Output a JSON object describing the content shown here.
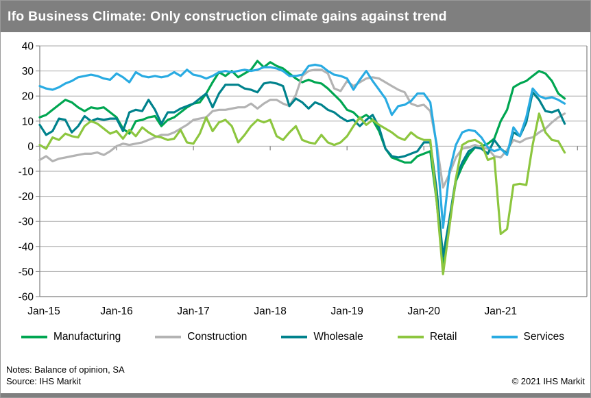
{
  "title": "Ifo Business Climate: Only construction climate gains against trend",
  "notes": {
    "line1": "Notes: Balance of opinion, SA",
    "line2": "Source: IHS Markit",
    "copyright": "© 2021 IHS Markit"
  },
  "colors": {
    "title_bar": "#7f7f7f",
    "grid": "#a6a6a6",
    "axis": "#7f7f7f",
    "manufacturing": "#00A651",
    "construction": "#B3B3B3",
    "wholesale": "#00828C",
    "retail": "#8DC63F",
    "services": "#29ABE2"
  },
  "chart_data": {
    "type": "line",
    "title": "Ifo Business Climate: Only construction climate gains against trend",
    "xlabel": "",
    "ylabel": "Balance of opinion, SA",
    "ylim": [
      -60,
      40
    ],
    "grid": "horizontal",
    "legend_position": "bottom",
    "x_start_month": "Jan-15",
    "x_end_month": "Nov-21",
    "x_tick_labels": [
      "Jan-15",
      "Jan-16",
      "Jan-17",
      "Jan-18",
      "Jan-19",
      "Jan-20",
      "Jan-21"
    ],
    "y_ticks": [
      40,
      30,
      20,
      10,
      0,
      -10,
      -20,
      -30,
      -40,
      -50,
      -60
    ],
    "series": [
      {
        "name": "Manufacturing",
        "color": "#00A651",
        "values": [
          11.5,
          12.5,
          14.5,
          16.5,
          18.5,
          17.5,
          15.5,
          14,
          15.5,
          15,
          15.5,
          13.5,
          11.5,
          7,
          5,
          10,
          10.5,
          11.5,
          12,
          8,
          10.5,
          11.5,
          13.5,
          15.5,
          17,
          17.5,
          21,
          25.5,
          29.5,
          28,
          30,
          27.5,
          29,
          30.5,
          34,
          31.5,
          33.5,
          32,
          31,
          29,
          27,
          25.5,
          26.5,
          25.5,
          25,
          23,
          20.5,
          18,
          14.5,
          13.5,
          11,
          12.5,
          10.5,
          6,
          -1,
          -4.5,
          -5.5,
          -6.5,
          -6.5,
          -4,
          -3,
          -2,
          -22,
          -48.5,
          -30,
          -14,
          -8,
          -3.5,
          -0.5,
          0,
          1,
          3,
          10,
          14.5,
          23.5,
          25,
          26,
          28,
          30,
          29,
          26,
          21,
          19
        ]
      },
      {
        "name": "Construction",
        "color": "#B3B3B3",
        "values": [
          -5.5,
          -4,
          -6,
          -5,
          -4.5,
          -4,
          -3.5,
          -3,
          -3,
          -2.5,
          -3.5,
          -2,
          0,
          1,
          0.5,
          1,
          1.5,
          2.5,
          3.5,
          4.5,
          4.5,
          5.5,
          7,
          8.5,
          10.5,
          11,
          11.5,
          14,
          14.5,
          14.5,
          15,
          15.5,
          15.5,
          17,
          15,
          17,
          18.5,
          18.5,
          17,
          16,
          20.5,
          28,
          30,
          30.5,
          30.5,
          29,
          23,
          22,
          26,
          24,
          25.5,
          27,
          27.5,
          27,
          25.5,
          24,
          22.5,
          21.5,
          17,
          16,
          16.5,
          14,
          1,
          -16.5,
          -11,
          -4.5,
          -1,
          -0.5,
          0.5,
          -0.5,
          -1,
          -4,
          -4.5,
          -1.5,
          2.5,
          1.5,
          3,
          3.5,
          5.5,
          7,
          9.5,
          11.5,
          13
        ]
      },
      {
        "name": "Wholesale",
        "color": "#00828C",
        "values": [
          8.5,
          4.5,
          6,
          11,
          10.5,
          5.5,
          8,
          12,
          10,
          11,
          10.5,
          11,
          11,
          6,
          13.5,
          14.5,
          14,
          18.5,
          14.5,
          9,
          13.5,
          13.5,
          15,
          16,
          17,
          19,
          21,
          15.5,
          21,
          24.5,
          24.5,
          24.5,
          23,
          22.5,
          21.5,
          25,
          25.5,
          25,
          24,
          16,
          19,
          17.5,
          15,
          17.5,
          16.5,
          14.5,
          13.5,
          11.5,
          10,
          10.5,
          8,
          10.5,
          12.5,
          7.5,
          -1,
          -4,
          -4.5,
          -4,
          -3,
          -2,
          1.5,
          1.5,
          -17.5,
          -44,
          -29,
          -13,
          -6.5,
          -2,
          -0.5,
          -1,
          -3,
          2.5,
          -1,
          -3,
          5.5,
          4,
          9.5,
          21.5,
          18.5,
          14,
          13.5,
          14.5,
          9
        ]
      },
      {
        "name": "Retail",
        "color": "#8DC63F",
        "values": [
          0.5,
          -1,
          3.5,
          2.5,
          5,
          4,
          3.5,
          8,
          10,
          9,
          7,
          5,
          6,
          3,
          6.5,
          4,
          7.5,
          5.5,
          4,
          3.5,
          2.5,
          3,
          6.5,
          1.5,
          1,
          5,
          11.5,
          6,
          9.5,
          10.5,
          8,
          1.5,
          4.5,
          8,
          10.5,
          9.5,
          10.5,
          4,
          2.5,
          5.5,
          8,
          2.5,
          1.5,
          1,
          4.5,
          1.5,
          0.5,
          1.5,
          4,
          8,
          11.5,
          8.5,
          10.5,
          8.5,
          7,
          5.5,
          3.5,
          2.5,
          5.5,
          3.5,
          2.5,
          2.5,
          -22,
          -51,
          -32,
          -13,
          0.5,
          2,
          2.5,
          1,
          -5.5,
          -4.5,
          -35,
          -33,
          -15.5,
          -15,
          -15.5,
          0.5,
          13,
          5.5,
          2.5,
          2,
          -2.5
        ]
      },
      {
        "name": "Services",
        "color": "#29ABE2",
        "values": [
          24,
          23,
          22.5,
          23.5,
          25,
          26,
          27.5,
          28,
          28.5,
          28,
          27,
          26.5,
          29,
          27.5,
          25.5,
          29.5,
          28,
          27.5,
          28,
          27.5,
          28,
          29.5,
          28,
          30.5,
          28.5,
          28,
          27,
          28,
          29.5,
          30,
          29.5,
          30,
          30.5,
          30,
          30.5,
          31.5,
          31.5,
          31,
          30,
          28,
          28,
          28.5,
          32,
          32.5,
          32,
          30,
          28.5,
          28,
          27,
          22.5,
          26.5,
          30,
          26,
          22.5,
          19,
          12.5,
          16,
          16.5,
          18,
          21,
          21,
          17.5,
          0,
          -32.5,
          -10,
          0.5,
          5.5,
          6.5,
          6,
          3.5,
          -0.5,
          -2,
          -1,
          -3.5,
          7.5,
          4,
          11.5,
          23,
          20,
          19,
          19.5,
          18.5,
          17
        ]
      }
    ]
  }
}
